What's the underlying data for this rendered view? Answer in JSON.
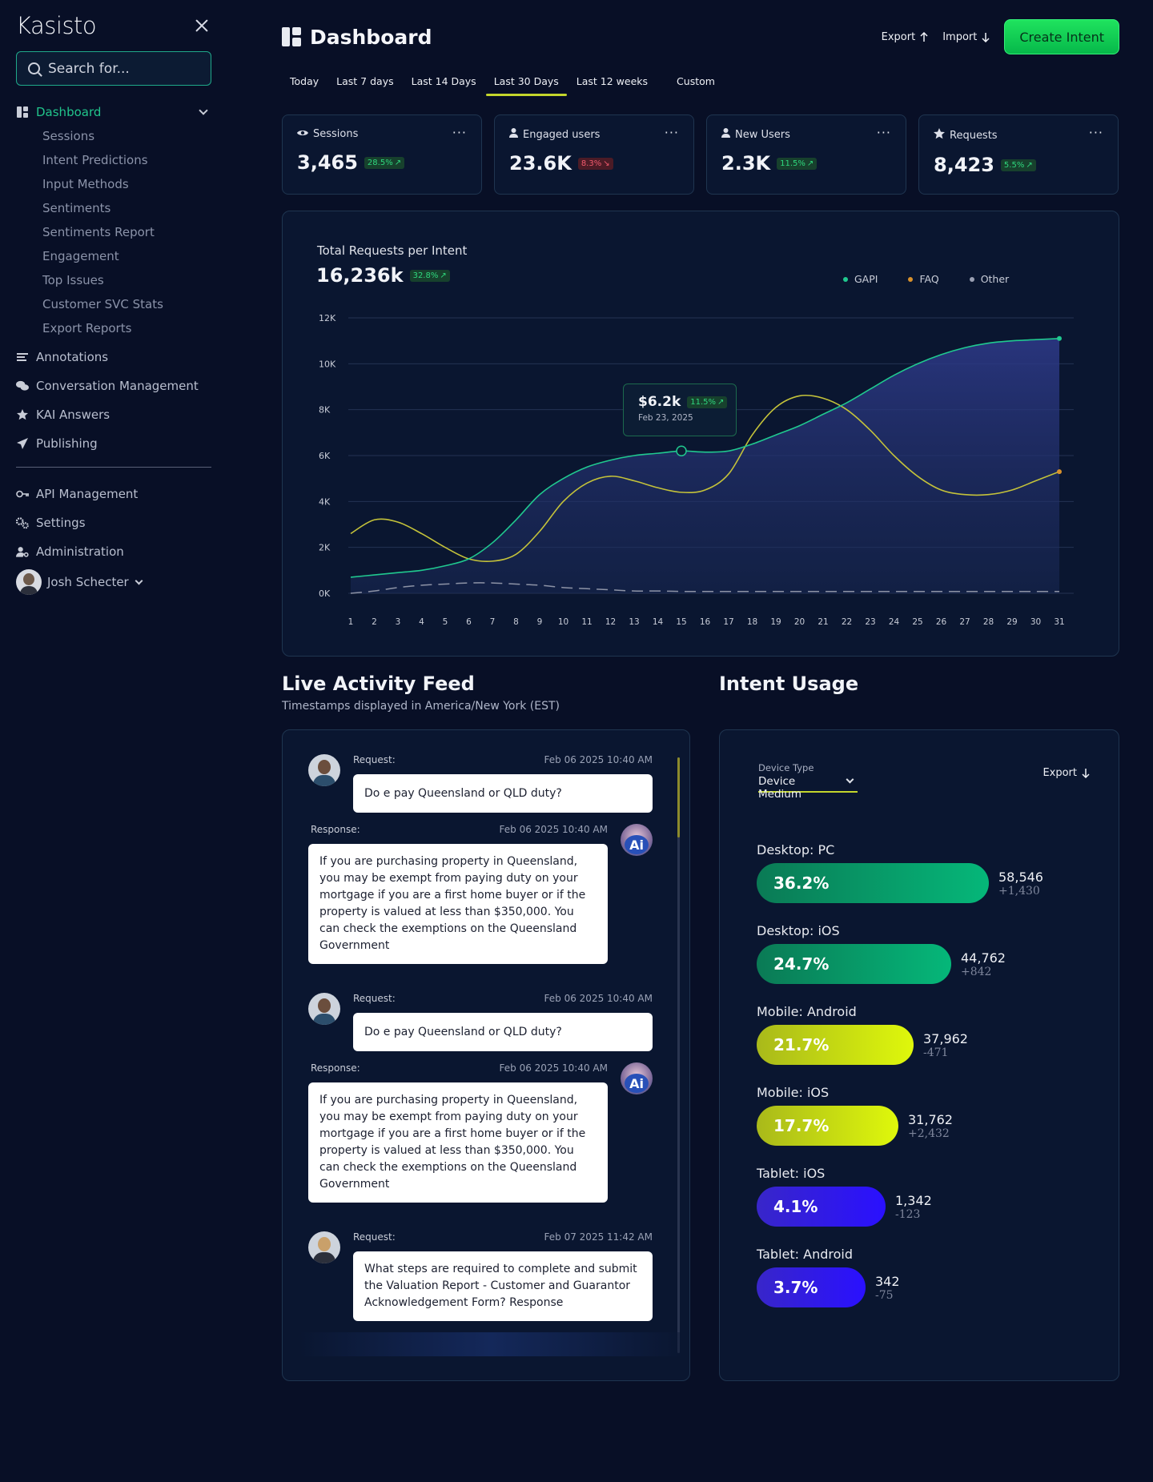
{
  "sidebar": {
    "brand": "Kasisto",
    "search_placeholder": "Search for...",
    "dashboard_label": "Dashboard",
    "sub_items": [
      "Sessions",
      "Intent Predictions",
      "Input Methods",
      "Sentiments",
      "Sentiments Report",
      "Engagement",
      "Top Issues",
      "Customer SVC Stats",
      "Export Reports"
    ],
    "items": [
      {
        "label": "Annotations",
        "icon": "list-icon"
      },
      {
        "label": "Conversation Management",
        "icon": "chat-icon"
      },
      {
        "label": "KAI Answers",
        "icon": "star-icon"
      },
      {
        "label": "Publishing",
        "icon": "paper-plane-icon"
      }
    ],
    "items2": [
      {
        "label": "API Management",
        "icon": "key-icon"
      },
      {
        "label": "Settings",
        "icon": "gears-icon"
      },
      {
        "label": "Administration",
        "icon": "user-gear-icon"
      }
    ],
    "user_name": "Josh Schecter"
  },
  "header": {
    "title": "Dashboard",
    "export_label": "Export",
    "import_label": "Import",
    "create_label": "Create Intent"
  },
  "tabs": [
    "Today",
    "Last 7 days",
    "Last 14 Days",
    "Last 30 Days",
    "Last 12 weeks",
    "Custom"
  ],
  "active_tab": "Last 30 Days",
  "kpis": [
    {
      "label": "Sessions",
      "value": "3,465",
      "change": "28.5%",
      "trend": "up",
      "icon": "eye-icon"
    },
    {
      "label": "Engaged users",
      "value": "23.6K",
      "change": "8.3%",
      "trend": "down",
      "icon": "user-icon"
    },
    {
      "label": "New Users",
      "value": "2.3K",
      "change": "11.5%",
      "trend": "up",
      "icon": "user-icon"
    },
    {
      "label": "Requests",
      "value": "8,423",
      "change": "5.5%",
      "trend": "up",
      "icon": "star-icon"
    }
  ],
  "chart": {
    "title": "Total  Requests per Intent",
    "total": "16,236k",
    "total_change": "32.8%",
    "tooltip": {
      "value": "$6.2k",
      "change": "11.5%",
      "date": "Feb 23, 2025"
    }
  },
  "chart_data": {
    "type": "line",
    "x": [
      1,
      2,
      3,
      4,
      5,
      6,
      7,
      8,
      9,
      10,
      11,
      12,
      13,
      14,
      15,
      16,
      17,
      18,
      19,
      20,
      21,
      22,
      23,
      24,
      25,
      26,
      27,
      28,
      29,
      30,
      31
    ],
    "yticks": [
      "0K",
      "2K",
      "4K",
      "6K",
      "8K",
      "10K",
      "12K"
    ],
    "ylim": [
      0,
      12000
    ],
    "legend_position": "top-right",
    "grid": true,
    "series": [
      {
        "name": "GAPI",
        "color": "#20c98f",
        "values": [
          700,
          800,
          900,
          1000,
          1200,
          1500,
          2200,
          3200,
          4300,
          5000,
          5500,
          5800,
          6000,
          6100,
          6200,
          6150,
          6200,
          6500,
          6900,
          7300,
          7800,
          8300,
          8900,
          9500,
          10000,
          10400,
          10700,
          10900,
          11000,
          11050,
          11100
        ]
      },
      {
        "name": "FAQ",
        "color": "#c4c23a",
        "values": [
          2600,
          3200,
          3100,
          2600,
          2000,
          1500,
          1400,
          1700,
          2700,
          4000,
          4800,
          5100,
          4900,
          4600,
          4400,
          4500,
          5200,
          6900,
          8100,
          8600,
          8500,
          8000,
          7100,
          6000,
          5100,
          4500,
          4300,
          4300,
          4500,
          4900,
          5300
        ]
      },
      {
        "name": "Other",
        "color": "#8d93a6",
        "values": [
          0,
          100,
          250,
          350,
          400,
          450,
          450,
          400,
          350,
          250,
          200,
          150,
          100,
          100,
          80,
          80,
          80,
          80,
          80,
          80,
          80,
          80,
          80,
          80,
          80,
          80,
          80,
          80,
          80,
          80,
          80
        ]
      }
    ]
  },
  "feed": {
    "title": "Live Activity Feed",
    "subtitle": "Timestamps displayed in America/New York (EST)",
    "request_label": "Request:",
    "response_label": "Response:",
    "messages": [
      {
        "type": "request",
        "time": "Feb 06 2025 10:40 AM",
        "text": "Do e pay Queensland or QLD duty?"
      },
      {
        "type": "response",
        "time": "Feb 06 2025 10:40 AM",
        "text": "If you are purchasing property in Queensland, you may be exempt from paying duty on your mortgage if you are a first home buyer or if the property is valued at less than $350,000. You can check the exemptions on the Queensland Government"
      },
      {
        "type": "request",
        "time": "Feb 06 2025 10:40 AM",
        "text": "Do e pay Queensland or QLD duty?"
      },
      {
        "type": "response",
        "time": "Feb 06 2025 10:40 AM",
        "text": "If you are purchasing property in Queensland, you may be exempt from paying duty on your mortgage if you are a first home buyer or if the property is valued at less than $350,000. You can check the exemptions on the Queensland Government"
      },
      {
        "type": "request",
        "time": "Feb 07 2025 11:42 AM",
        "text": "What steps are required to complete and submit the Valuation Report - Customer and Guarantor Acknowledgement Form? Response"
      }
    ],
    "ai_badge": "Ai"
  },
  "usage": {
    "title": "Intent Usage",
    "device_label": "Device Type",
    "device_value": "Device Medium",
    "export_label": "Export",
    "rows": [
      {
        "label": "Desktop: PC",
        "percent": "36.2%",
        "fraction": 0.362,
        "count": "58,546",
        "delta": "+1,430",
        "color_from": "#0a7a55",
        "color_to": "#05b779",
        "dark_text": false
      },
      {
        "label": "Desktop: iOS",
        "percent": "24.7%",
        "fraction": 0.247,
        "count": "44,762",
        "delta": "+842",
        "color_from": "#0a7a55",
        "color_to": "#05b779",
        "dark_text": false
      },
      {
        "label": "Mobile: Android",
        "percent": "21.7%",
        "fraction": 0.217,
        "count": "37,962",
        "delta": "-471",
        "color_from": "#a9b91a",
        "color_to": "#dff80b",
        "dark_text": false
      },
      {
        "label": "Mobile: iOS",
        "percent": "17.7%",
        "fraction": 0.177,
        "count": "31,762",
        "delta": "+2,432",
        "color_from": "#a9b91a",
        "color_to": "#dff80b",
        "dark_text": false
      },
      {
        "label": "Tablet: iOS",
        "percent": "4.1%",
        "fraction": 0.041,
        "count": "1,342",
        "delta": "-123",
        "color_from": "#3826c9",
        "color_to": "#2a10ff",
        "dark_text": false
      },
      {
        "label": "Tablet: Android",
        "percent": "3.7%",
        "fraction": 0.037,
        "count": "342",
        "delta": "-75",
        "color_from": "#3826c9",
        "color_to": "#2a10ff",
        "dark_text": false
      }
    ]
  }
}
